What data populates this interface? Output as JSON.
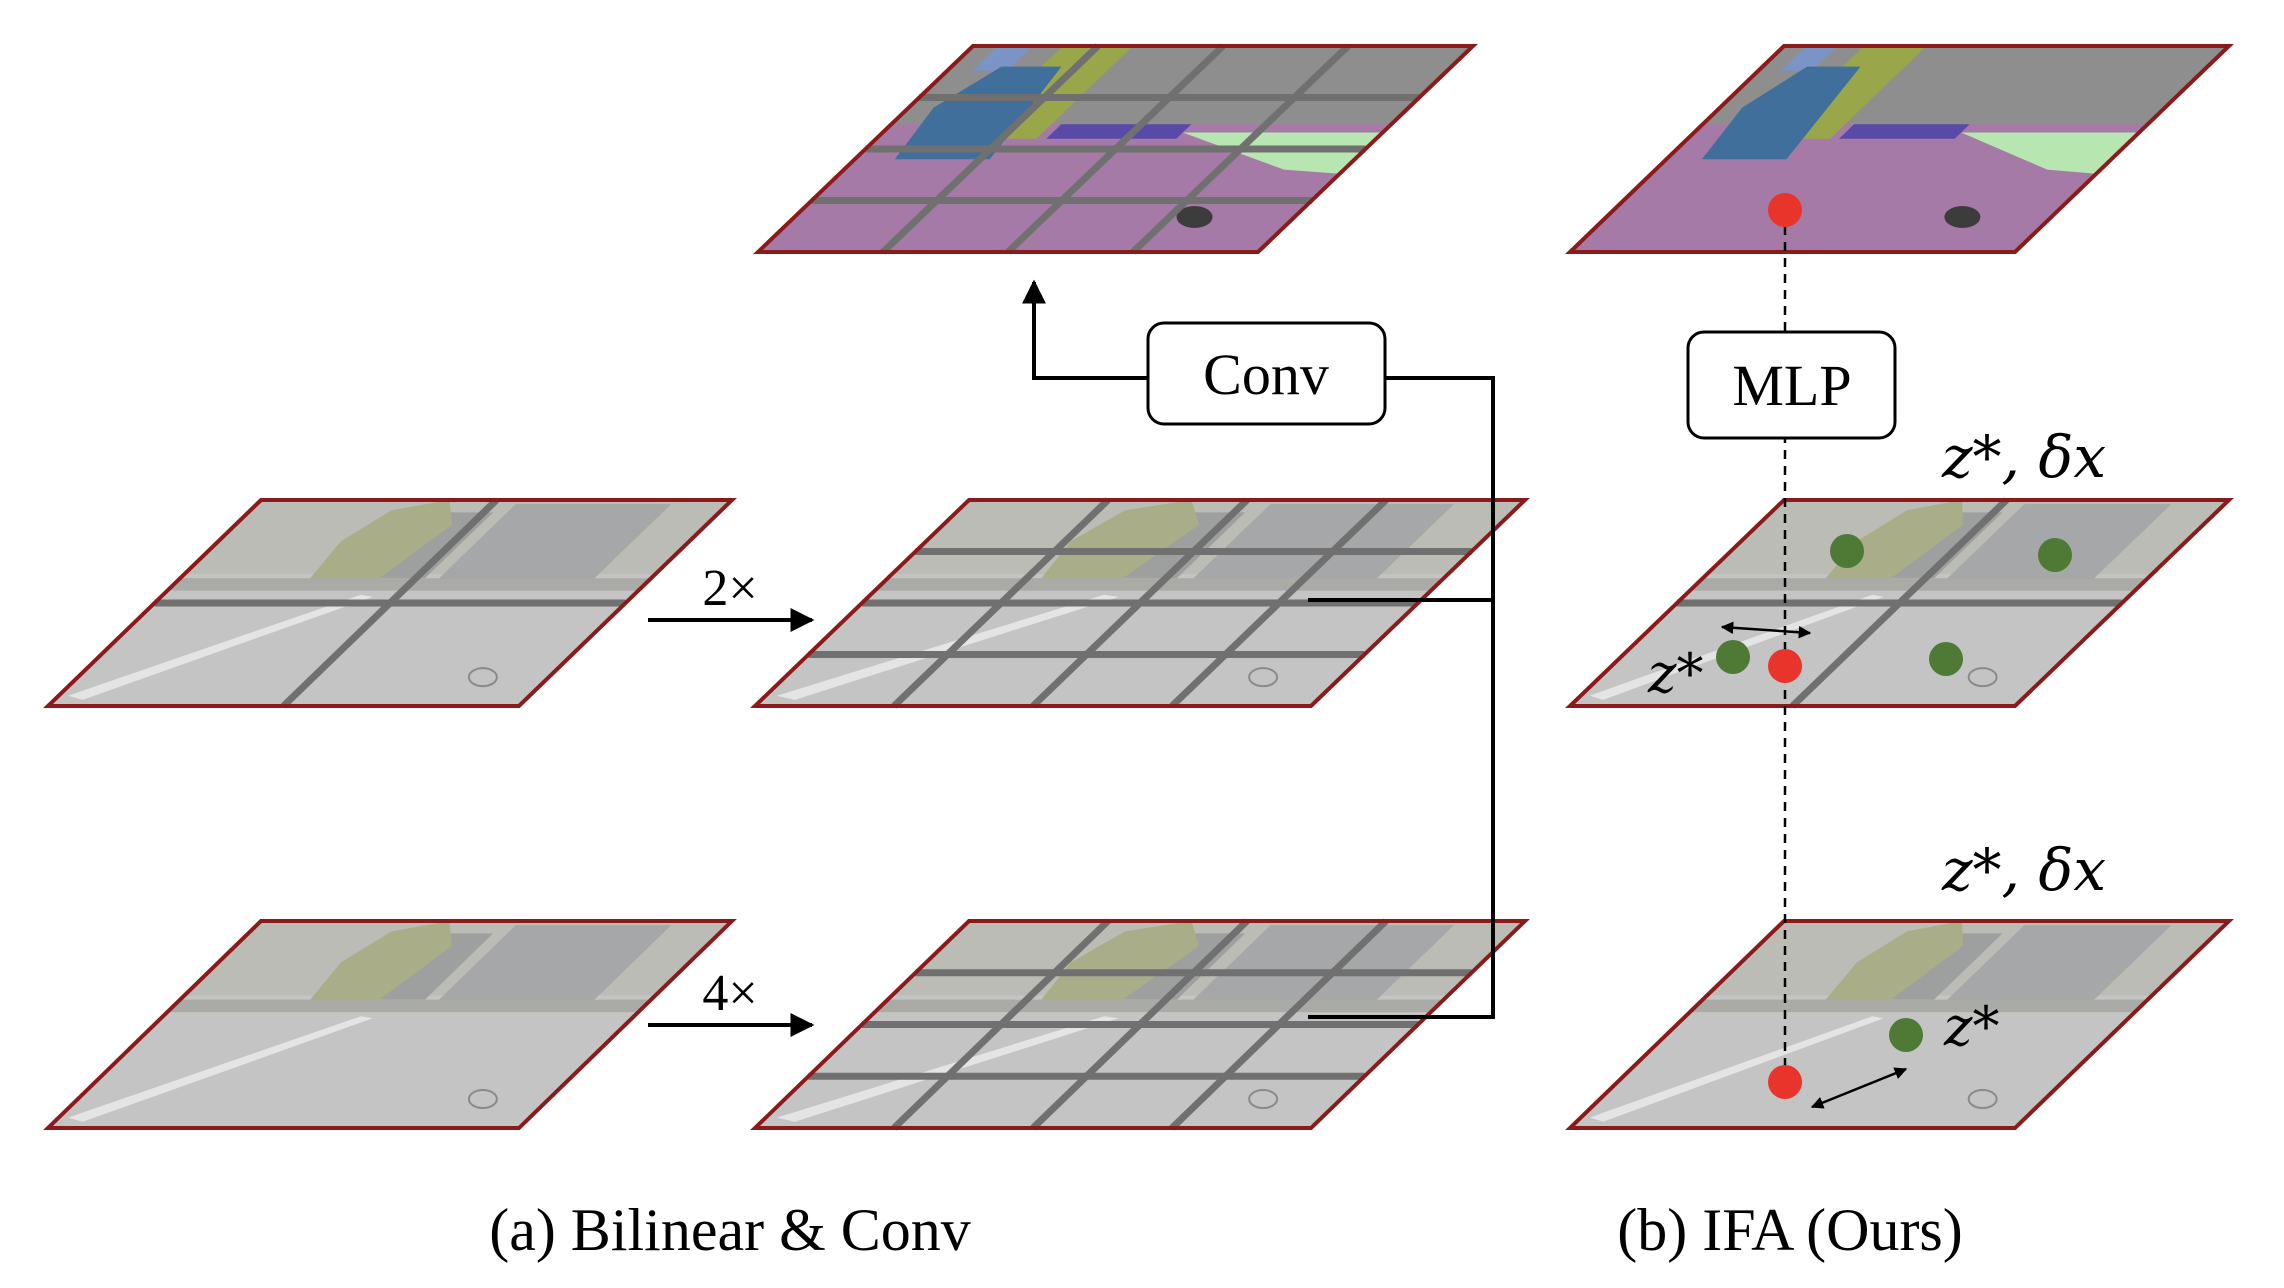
{
  "panel_a": {
    "caption": "(a) Bilinear & Conv",
    "conv_label": "Conv",
    "upsample_2x": "2×",
    "upsample_4x": "4×"
  },
  "panel_b": {
    "caption": "(b) IFA (Ours)",
    "mlp_label": "MLP",
    "mid_annotation": "z*, δx",
    "bottom_annotation": "z*, δx",
    "mid_latent_label": "z*",
    "bottom_latent_label": "z*"
  },
  "colors": {
    "plane_border": "#8b1a1a",
    "grid_line": "#707070",
    "query_point": "#e8342a",
    "latent_point": "#4e7a36",
    "seg_road": "#a67aa6",
    "seg_building": "#8e8e8e",
    "seg_car": "#3f6f9a",
    "seg_vegetation": "#9aa64a",
    "seg_sidewalk": "#b8e6b0",
    "photo_road": "#c4c4c4",
    "photo_top": "#b7b7b2"
  }
}
